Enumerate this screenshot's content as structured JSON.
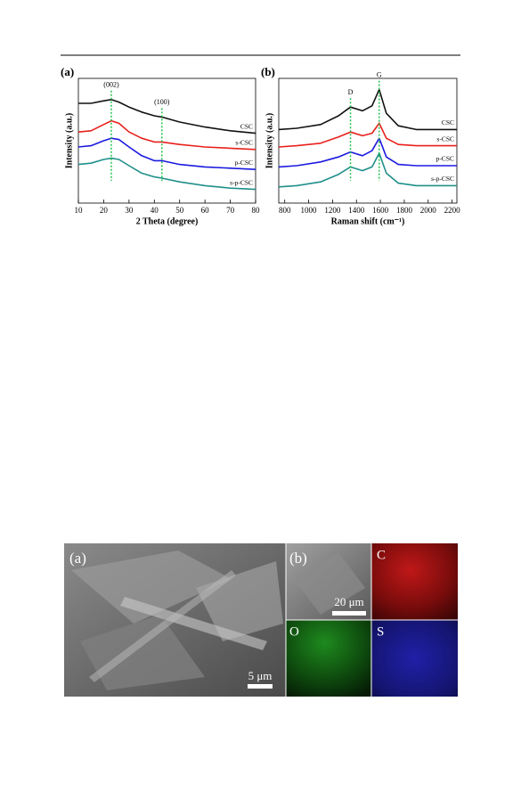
{
  "chart_data": [
    {
      "type": "line",
      "panel": "(a)",
      "x_label": "2 Theta (degree)",
      "y_label": "Intensity (a.u.)",
      "x": [
        10,
        15,
        20,
        23,
        26,
        30,
        35,
        40,
        43,
        50,
        60,
        70,
        80
      ],
      "xlim": [
        10,
        80
      ],
      "xticks": [
        10,
        20,
        30,
        40,
        50,
        60,
        70,
        80
      ],
      "ylim": [
        0,
        100
      ],
      "series": [
        {
          "name": "CSC",
          "color": "#111111",
          "values": [
            80,
            80,
            82,
            83,
            81,
            77,
            73,
            70,
            69,
            65,
            61,
            58,
            56
          ]
        },
        {
          "name": "s-CSC",
          "color": "#e8201c",
          "values": [
            57,
            58,
            63,
            66,
            64,
            57,
            52,
            49,
            49,
            47,
            45,
            44,
            43
          ]
        },
        {
          "name": "p-CSC",
          "color": "#1a1adf",
          "values": [
            45,
            46,
            50,
            52,
            51,
            45,
            38,
            34,
            34,
            31,
            29,
            28,
            27
          ]
        },
        {
          "name": "s-p-CSC",
          "color": "#1f8f8a",
          "values": [
            31,
            32,
            35,
            36,
            35,
            30,
            24,
            21,
            20,
            17,
            14,
            12,
            11
          ]
        }
      ],
      "markers": [
        {
          "x": 23,
          "label": "(002)"
        },
        {
          "x": 43,
          "label": "(100)"
        }
      ],
      "marker_color": "#22c04a"
    },
    {
      "type": "line",
      "panel": "(b)",
      "x_label": "Raman shift (cm⁻¹)",
      "y_label": "Intensity (a.u.)",
      "x": [
        750,
        900,
        1100,
        1250,
        1350,
        1450,
        1530,
        1590,
        1650,
        1750,
        1900,
        2100,
        2240
      ],
      "xlim": [
        750,
        2240
      ],
      "xticks": [
        800,
        1000,
        1200,
        1400,
        1600,
        1800,
        2000,
        2200
      ],
      "ylim": [
        0,
        100
      ],
      "series": [
        {
          "name": "CSC",
          "color": "#111111",
          "values": [
            59,
            60,
            63,
            70,
            77,
            74,
            78,
            91,
            72,
            62,
            59,
            59,
            59
          ]
        },
        {
          "name": "s-CSC",
          "color": "#e8201c",
          "values": [
            45,
            46,
            48,
            53,
            57,
            54,
            56,
            64,
            52,
            47,
            46,
            46,
            46
          ]
        },
        {
          "name": "p-CSC",
          "color": "#1a1adf",
          "values": [
            29,
            30,
            33,
            37,
            41,
            38,
            42,
            52,
            37,
            31,
            30,
            30,
            30
          ]
        },
        {
          "name": "s-p-CSC",
          "color": "#1f8f8a",
          "values": [
            13,
            14,
            17,
            23,
            29,
            26,
            29,
            40,
            24,
            16,
            14,
            14,
            14
          ]
        }
      ],
      "markers": [
        {
          "x": 1350,
          "label": "D"
        },
        {
          "x": 1590,
          "label": "G"
        }
      ],
      "marker_color": "#22c04a"
    }
  ],
  "figure2": {
    "panel_a": "(a)",
    "scale_a": "5 μm",
    "panel_b": "(b)",
    "scale_b": "20 μm",
    "maps": [
      "C",
      "O",
      "S"
    ]
  }
}
